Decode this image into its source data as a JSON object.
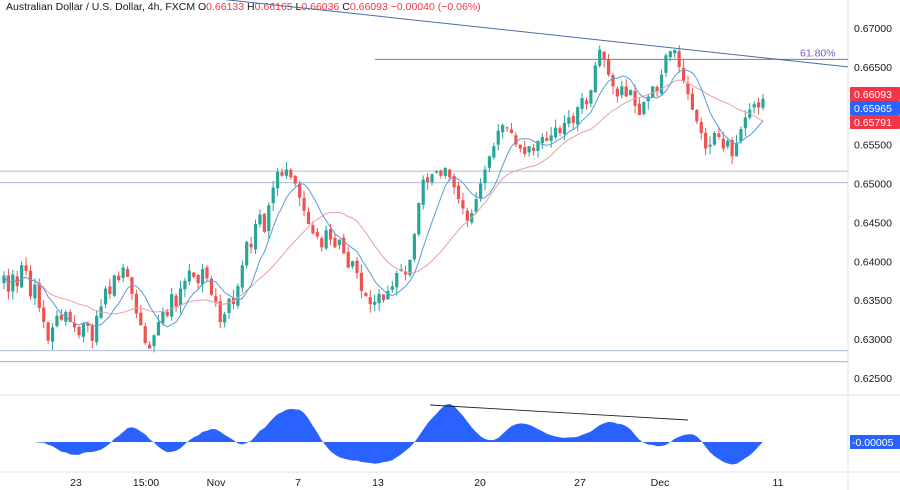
{
  "header": {
    "symbol": "Australian Dollar / U.S. Dollar, 4h, FXCM",
    "o_label": "O",
    "o": "0.66133",
    "h_label": "H",
    "h": "0.66165",
    "l_label": "L",
    "l": "0.66036",
    "c_label": "C",
    "c": "0.66093",
    "change": "−0.00040 (−0.06%)"
  },
  "colors": {
    "up": "#26a69a",
    "down": "#ef5350",
    "fast_ma": "#5b9bd5",
    "slow_ma": "#e8a0a0",
    "hline": "#90a4c8",
    "trendline": "#4a6aa5",
    "osc": "#2962ff",
    "tag_red": "#f23645",
    "tag_blue": "#2962ff"
  },
  "chart_data": [
    {
      "type": "candlestick",
      "timeframe": "4h",
      "x_ticks": [
        "23",
        "15:00",
        "Nov",
        "7",
        "13",
        "20",
        "27",
        "Dec",
        "11"
      ],
      "y_ticks": [
        "0.67000",
        "0.66500",
        "0.66000",
        "0.65500",
        "0.65000",
        "0.64500",
        "0.64000",
        "0.63500",
        "0.63000",
        "0.62500"
      ],
      "ylim": [
        0.6232,
        0.6718
      ],
      "price_tags": [
        {
          "value": "0.66093",
          "color": "red"
        },
        {
          "value": "0.65965",
          "color": "blue"
        },
        {
          "value": "0.65791",
          "color": "red"
        }
      ],
      "fib_level": {
        "label": "61.80%",
        "value": 0.6661
      },
      "horizontal_levels": [
        0.6516,
        0.6501,
        0.6285,
        0.6271
      ],
      "trendline": {
        "from": 0.674,
        "to": 0.665
      },
      "candles_close": [
        0.6382,
        0.6361,
        0.6383,
        0.6368,
        0.6395,
        0.6388,
        0.6355,
        0.637,
        0.634,
        0.6322,
        0.6298,
        0.6315,
        0.633,
        0.6325,
        0.6335,
        0.6322,
        0.6315,
        0.6305,
        0.632,
        0.6317,
        0.6298,
        0.633,
        0.6342,
        0.6365,
        0.6358,
        0.6382,
        0.6376,
        0.6392,
        0.638,
        0.6358,
        0.6333,
        0.6318,
        0.6295,
        0.6288,
        0.6305,
        0.6322,
        0.6335,
        0.633,
        0.6358,
        0.6342,
        0.6365,
        0.6375,
        0.6388,
        0.638,
        0.6372,
        0.639,
        0.6378,
        0.6357,
        0.6348,
        0.6322,
        0.6332,
        0.6352,
        0.6345,
        0.6368,
        0.6395,
        0.6425,
        0.6418,
        0.6448,
        0.646,
        0.6438,
        0.6472,
        0.6495,
        0.6515,
        0.651,
        0.6518,
        0.6508,
        0.65,
        0.6482,
        0.6465,
        0.6448,
        0.6436,
        0.6432,
        0.6418,
        0.644,
        0.6428,
        0.6418,
        0.6428,
        0.641,
        0.6392,
        0.64,
        0.6385,
        0.6362,
        0.6355,
        0.6345,
        0.6348,
        0.6358,
        0.635,
        0.6362,
        0.6368,
        0.6385,
        0.639,
        0.6383,
        0.6402,
        0.6435,
        0.6475,
        0.6505,
        0.6502,
        0.6512,
        0.6516,
        0.651,
        0.652,
        0.6508,
        0.6495,
        0.648,
        0.6468,
        0.6452,
        0.6462,
        0.648,
        0.65,
        0.6518,
        0.6535,
        0.6548,
        0.6568,
        0.6575,
        0.6572,
        0.6565,
        0.655,
        0.6545,
        0.6538,
        0.6548,
        0.6542,
        0.6555,
        0.656,
        0.6555,
        0.6562,
        0.6572,
        0.6565,
        0.6578,
        0.6585,
        0.6578,
        0.6598,
        0.661,
        0.6602,
        0.662,
        0.6652,
        0.6672,
        0.666,
        0.664,
        0.6625,
        0.6612,
        0.6625,
        0.6612,
        0.662,
        0.66,
        0.6588,
        0.6605,
        0.6612,
        0.6625,
        0.6618,
        0.664,
        0.6665,
        0.667,
        0.6672,
        0.665,
        0.6632,
        0.6615,
        0.6595,
        0.658,
        0.6565,
        0.6545,
        0.655,
        0.6565,
        0.656,
        0.6545,
        0.6555,
        0.6535,
        0.6552,
        0.657,
        0.6585,
        0.6595,
        0.6602,
        0.6598,
        0.6609
      ]
    },
    {
      "type": "area",
      "indicator": "oscillator",
      "last_value_label": "-0.00005"
    }
  ]
}
